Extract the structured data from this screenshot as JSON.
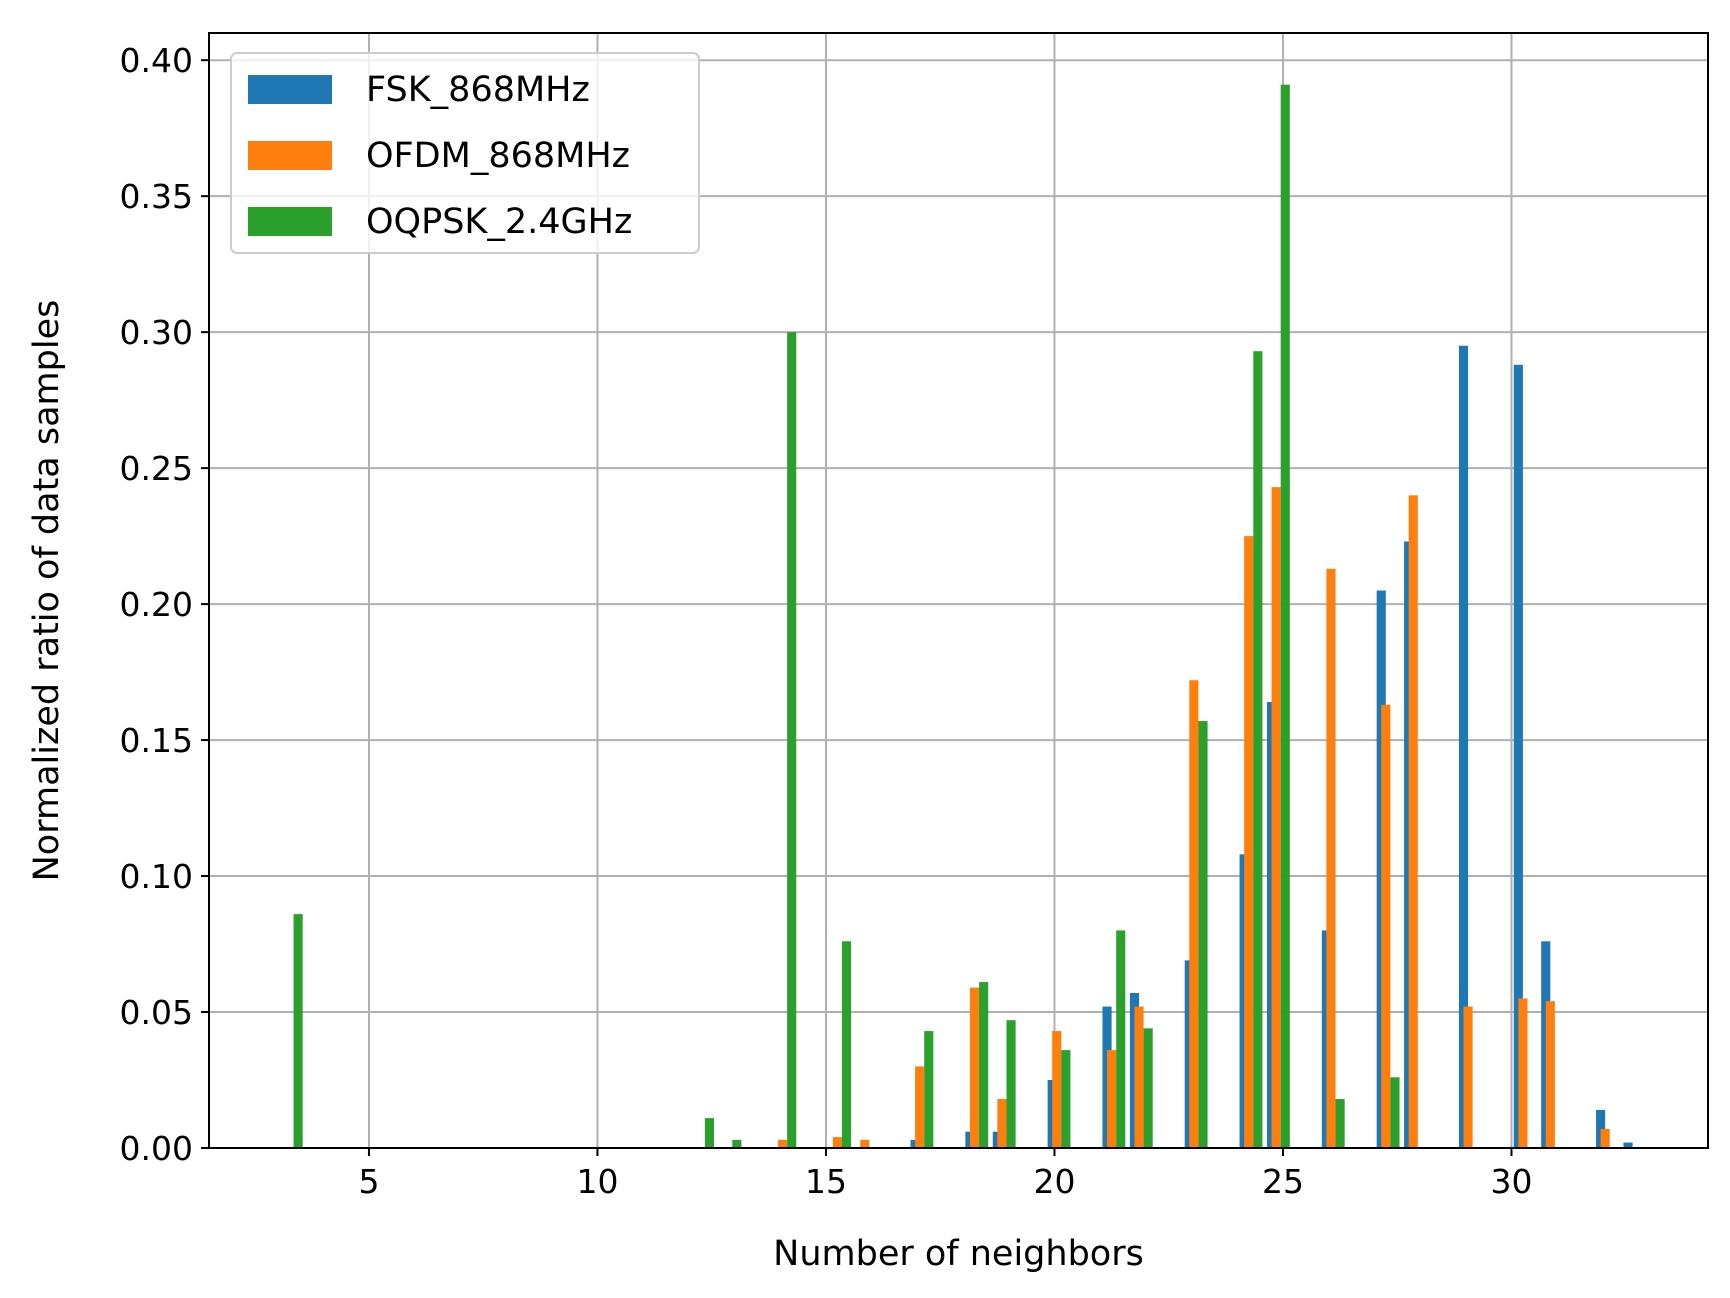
{
  "chart_data": {
    "type": "bar",
    "xlabel": "Number of neighbors",
    "ylabel": "Normalized ratio of data samples",
    "xlim": [
      1.5,
      34.3
    ],
    "ylim": [
      0,
      0.41
    ],
    "xticks": [
      5,
      10,
      15,
      20,
      25,
      30
    ],
    "xtick_labels": [
      "5",
      "10",
      "15",
      "20",
      "25",
      "30"
    ],
    "yticks": [
      0,
      0.05,
      0.1,
      0.15,
      0.2,
      0.25,
      0.3,
      0.35,
      0.4
    ],
    "ytick_labels": [
      "0.00",
      "0.05",
      "0.10",
      "0.15",
      "0.20",
      "0.25",
      "0.30",
      "0.35",
      "0.40"
    ],
    "grid": true,
    "legend_position": "top-left",
    "bar_width": 0.2,
    "series": [
      {
        "name": "FSK_868MHz",
        "color": "#1f77b4",
        "points": [
          {
            "x": 16.95,
            "y": 0.003
          },
          {
            "x": 18.15,
            "y": 0.006
          },
          {
            "x": 18.75,
            "y": 0.006
          },
          {
            "x": 19.95,
            "y": 0.025
          },
          {
            "x": 21.15,
            "y": 0.052
          },
          {
            "x": 21.75,
            "y": 0.057
          },
          {
            "x": 22.95,
            "y": 0.069
          },
          {
            "x": 24.15,
            "y": 0.108
          },
          {
            "x": 24.75,
            "y": 0.164
          },
          {
            "x": 25.95,
            "y": 0.08
          },
          {
            "x": 27.15,
            "y": 0.205
          },
          {
            "x": 27.75,
            "y": 0.223
          },
          {
            "x": 28.95,
            "y": 0.295
          },
          {
            "x": 30.15,
            "y": 0.288
          },
          {
            "x": 30.75,
            "y": 0.076
          },
          {
            "x": 31.95,
            "y": 0.014
          },
          {
            "x": 32.55,
            "y": 0.002
          }
        ]
      },
      {
        "name": "OFDM_868MHz",
        "color": "#ff7f0e",
        "points": [
          {
            "x": 14.05,
            "y": 0.003
          },
          {
            "x": 15.25,
            "y": 0.004
          },
          {
            "x": 15.85,
            "y": 0.003
          },
          {
            "x": 17.05,
            "y": 0.03
          },
          {
            "x": 18.25,
            "y": 0.059
          },
          {
            "x": 18.85,
            "y": 0.018
          },
          {
            "x": 20.05,
            "y": 0.043
          },
          {
            "x": 21.25,
            "y": 0.036
          },
          {
            "x": 21.85,
            "y": 0.052
          },
          {
            "x": 23.05,
            "y": 0.172
          },
          {
            "x": 24.25,
            "y": 0.225
          },
          {
            "x": 24.85,
            "y": 0.243
          },
          {
            "x": 26.05,
            "y": 0.213
          },
          {
            "x": 27.25,
            "y": 0.163
          },
          {
            "x": 27.85,
            "y": 0.24
          },
          {
            "x": 29.05,
            "y": 0.052
          },
          {
            "x": 30.25,
            "y": 0.055
          },
          {
            "x": 30.85,
            "y": 0.054
          },
          {
            "x": 32.05,
            "y": 0.007
          }
        ]
      },
      {
        "name": "OQPSK_2.4GHz",
        "color": "#2ca02c",
        "points": [
          {
            "x": 3.45,
            "y": 0.086
          },
          {
            "x": 12.45,
            "y": 0.011
          },
          {
            "x": 13.05,
            "y": 0.003
          },
          {
            "x": 14.25,
            "y": 0.3
          },
          {
            "x": 15.45,
            "y": 0.076
          },
          {
            "x": 17.25,
            "y": 0.043
          },
          {
            "x": 18.45,
            "y": 0.061
          },
          {
            "x": 19.05,
            "y": 0.047
          },
          {
            "x": 20.25,
            "y": 0.036
          },
          {
            "x": 21.45,
            "y": 0.08
          },
          {
            "x": 22.05,
            "y": 0.044
          },
          {
            "x": 23.25,
            "y": 0.157
          },
          {
            "x": 24.45,
            "y": 0.293
          },
          {
            "x": 25.05,
            "y": 0.391
          },
          {
            "x": 26.25,
            "y": 0.018
          },
          {
            "x": 27.45,
            "y": 0.026
          }
        ]
      }
    ]
  }
}
